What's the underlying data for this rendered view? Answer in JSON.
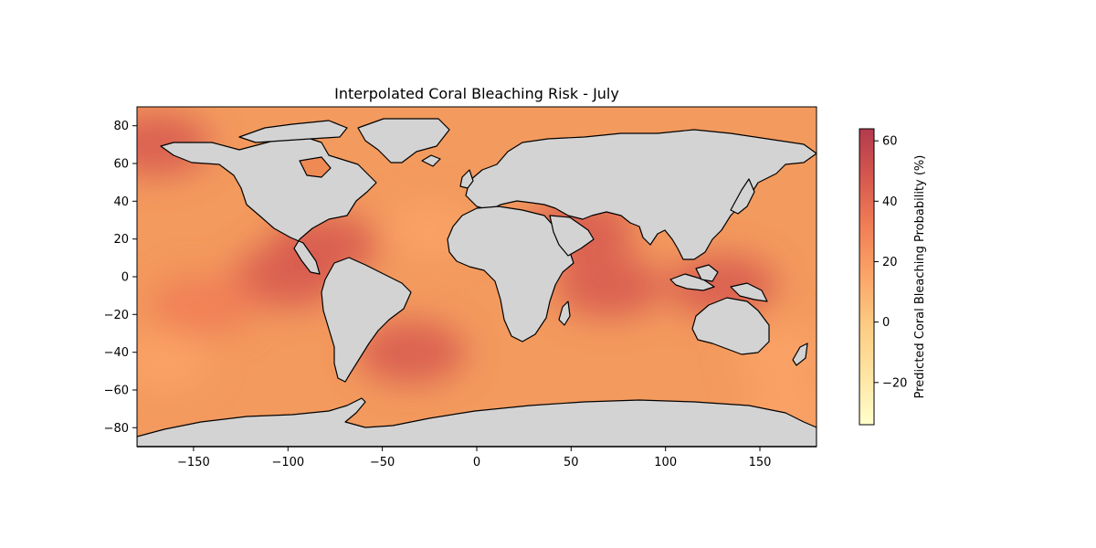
{
  "title": "Interpolated Coral Bleaching Risk - July",
  "colors": {
    "ocean_base": "#f4a261",
    "land": "#d3d3d3",
    "border": "#000000",
    "colormap": [
      "#ffffcc",
      "#fee4a1",
      "#fdcb82",
      "#fba367",
      "#f07c55",
      "#d6574f",
      "#b23a4d"
    ]
  },
  "axes": {
    "x_ticks": [
      "−150",
      "−100",
      "−50",
      "0",
      "50",
      "100",
      "150"
    ],
    "y_ticks": [
      "80",
      "60",
      "40",
      "20",
      "0",
      "−20",
      "−40",
      "−60",
      "−80"
    ],
    "xlim": [
      -180,
      180
    ],
    "ylim": [
      -90,
      90
    ]
  },
  "colorbar": {
    "label": "Predicted Coral Bleaching Probability (%)",
    "ticks": [
      "60",
      "40",
      "20",
      "0",
      "−20"
    ],
    "range": [
      -34,
      64
    ]
  },
  "chart_data": {
    "type": "heatmap",
    "title": "Interpolated Coral Bleaching Risk - July",
    "xlim": [
      -180,
      180
    ],
    "ylim": [
      -90,
      90
    ],
    "colorbar_label": "Predicted Coral Bleaching Probability (%)",
    "colorbar_range": [
      -34,
      64
    ],
    "hotspots": [
      {
        "lon": -100,
        "lat": 0,
        "value": 48
      },
      {
        "lon": -170,
        "lat": 70,
        "value": 50
      },
      {
        "lon": -80,
        "lat": 17,
        "value": 50
      },
      {
        "lon": 55,
        "lat": 25,
        "value": 52
      },
      {
        "lon": 130,
        "lat": -5,
        "value": 55
      },
      {
        "lon": 70,
        "lat": -5,
        "value": 42
      },
      {
        "lon": -35,
        "lat": -40,
        "value": 42
      },
      {
        "lon": -145,
        "lat": -15,
        "value": 38
      }
    ],
    "coolspots": [
      {
        "lon": -165,
        "lat": -45,
        "value": 12
      },
      {
        "lon": -25,
        "lat": 25,
        "value": 15
      },
      {
        "lon": 160,
        "lat": -40,
        "value": 15
      },
      {
        "lon": 165,
        "lat": -70,
        "value": 15
      }
    ]
  }
}
